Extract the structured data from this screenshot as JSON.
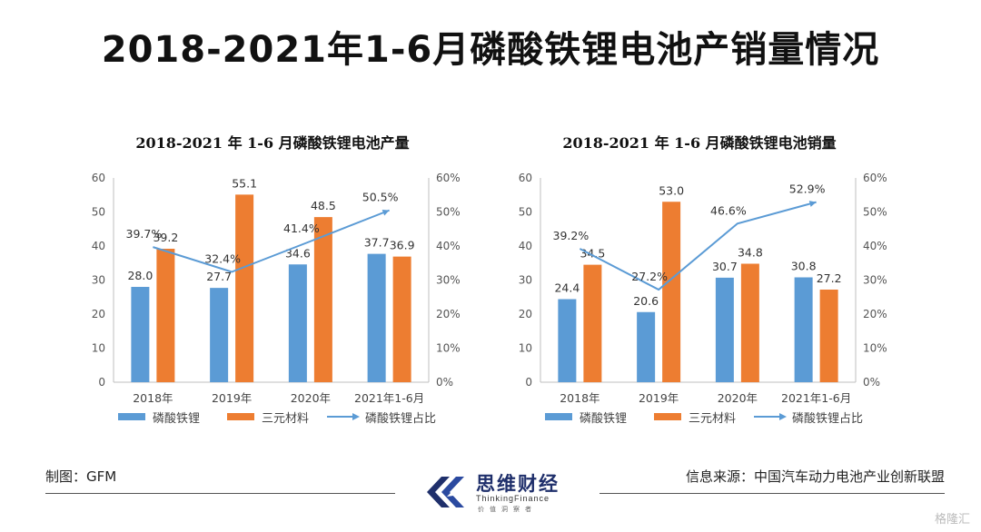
{
  "page": {
    "title": "2018-2021年1-6月磷酸铁锂电池产销量情况",
    "maker": "制图：GFM",
    "source": "信息来源：中国汽车动力电池产业创新联盟",
    "logo_name": "思维财经",
    "logo_sub": "ThinkingFinance",
    "logo_sub2": "价值洞察者",
    "watermark": "格隆汇"
  },
  "colors": {
    "blue": "#5b9bd5",
    "orange": "#ed7d31",
    "line": "#5b9bd5",
    "logo": "#1f2f6b"
  },
  "chart_data": [
    {
      "type": "bar",
      "title": "2018-2021 年 1-6 月磷酸铁锂电池产量",
      "categories": [
        "2018年",
        "2019年",
        "2020年",
        "2021年1-6月"
      ],
      "series": [
        {
          "name": "磷酸铁锂",
          "values": [
            28.0,
            27.7,
            34.6,
            37.7
          ]
        },
        {
          "name": "三元材料",
          "values": [
            39.2,
            55.1,
            48.5,
            36.9
          ]
        }
      ],
      "line_series": {
        "name": "磷酸铁锂占比",
        "values": [
          39.7,
          32.4,
          41.4,
          50.5
        ],
        "unit": "%"
      },
      "y_left": {
        "min": 0,
        "max": 60,
        "ticks": [
          0,
          10,
          20,
          30,
          40,
          50,
          60
        ]
      },
      "y_right": {
        "min": 0,
        "max": 60,
        "ticks": [
          "0%",
          "10%",
          "20%",
          "30%",
          "40%",
          "50%",
          "60%"
        ]
      },
      "legend": "bottom"
    },
    {
      "type": "bar",
      "title": "2018-2021 年 1-6 月磷酸铁锂电池销量",
      "categories": [
        "2018年",
        "2019年",
        "2020年",
        "2021年1-6月"
      ],
      "series": [
        {
          "name": "磷酸铁锂",
          "values": [
            24.4,
            20.6,
            30.7,
            30.8
          ]
        },
        {
          "name": "三元材料",
          "values": [
            34.5,
            53.0,
            34.8,
            27.2
          ]
        }
      ],
      "line_series": {
        "name": "磷酸铁锂占比",
        "values": [
          39.2,
          27.2,
          46.6,
          52.9
        ],
        "unit": "%"
      },
      "y_left": {
        "min": 0,
        "max": 60,
        "ticks": [
          0,
          10,
          20,
          30,
          40,
          50,
          60
        ]
      },
      "y_right": {
        "min": 0,
        "max": 60,
        "ticks": [
          "0%",
          "10%",
          "20%",
          "30%",
          "40%",
          "50%",
          "60%"
        ]
      },
      "legend": "bottom"
    }
  ]
}
